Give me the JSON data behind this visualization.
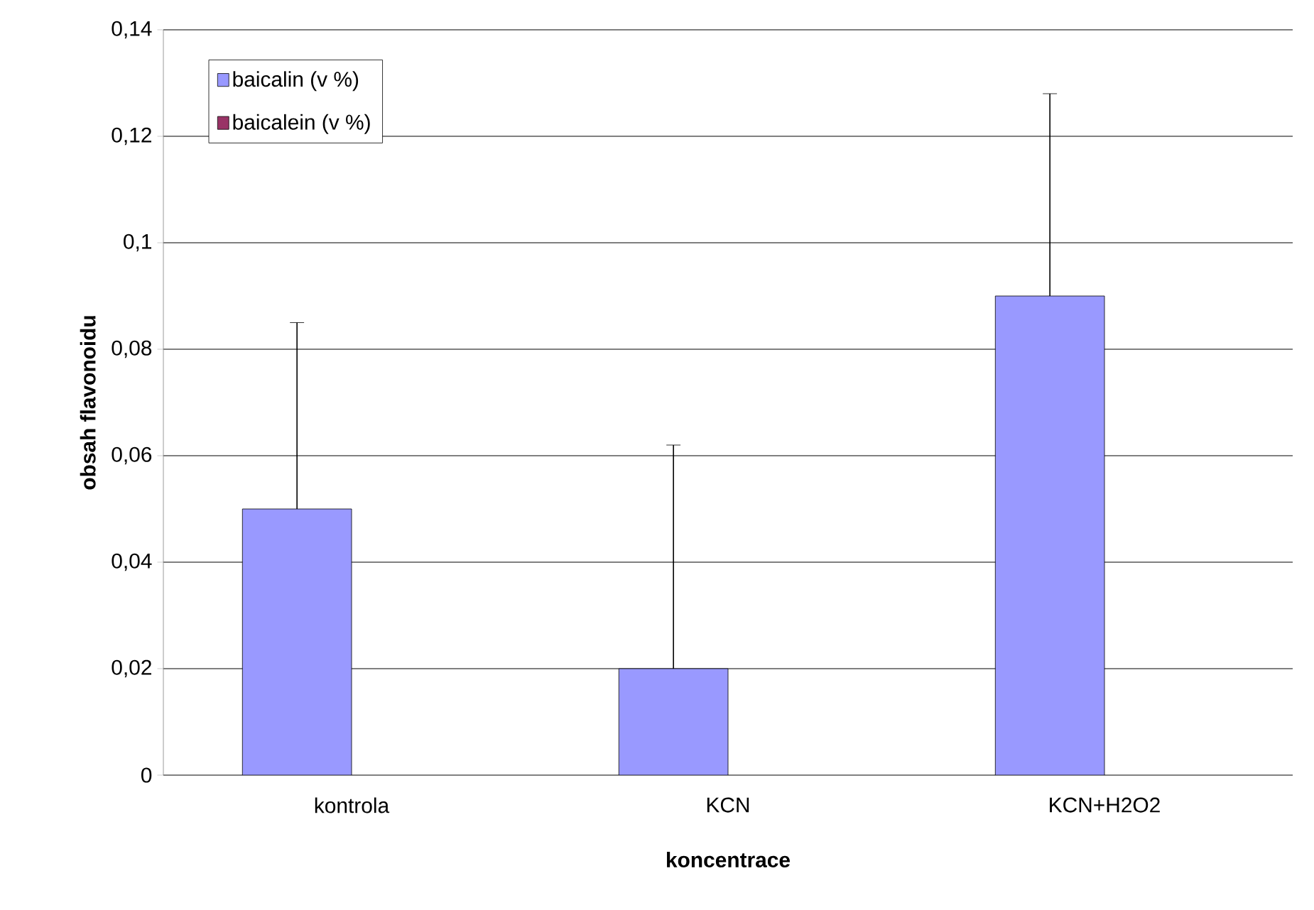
{
  "chart_data": {
    "type": "bar",
    "xlabel": "koncentrace",
    "ylabel": "obsah flavonoidu",
    "categories": [
      "kontrola",
      "KCN",
      "KCN+H2O2"
    ],
    "series": [
      {
        "name": "baicalin (v %)",
        "color": "#9999ff",
        "values": [
          0.05,
          0.02,
          0.09
        ],
        "errors": [
          [
            0.05,
            0.085
          ],
          [
            0.02,
            0.062
          ],
          [
            0.09,
            0.128
          ]
        ]
      },
      {
        "name": "baicalein (v %)",
        "color": "#993366",
        "values": [
          null,
          null,
          null
        ]
      }
    ],
    "ylim": [
      0,
      0.14
    ],
    "yticks": [
      0,
      {
        "value": 0.02,
        "label": "0,02"
      },
      {
        "value": 0.04,
        "label": "0,04"
      },
      {
        "value": 0.06,
        "label": "0,06"
      },
      {
        "value": 0.08,
        "label": "0,08"
      },
      {
        "value": 0.1,
        "label": "0,1"
      },
      {
        "value": 0.12,
        "label": "0,12"
      },
      {
        "value": 0.14,
        "label": "0,14"
      }
    ],
    "grid": "y",
    "legend": "top left"
  }
}
